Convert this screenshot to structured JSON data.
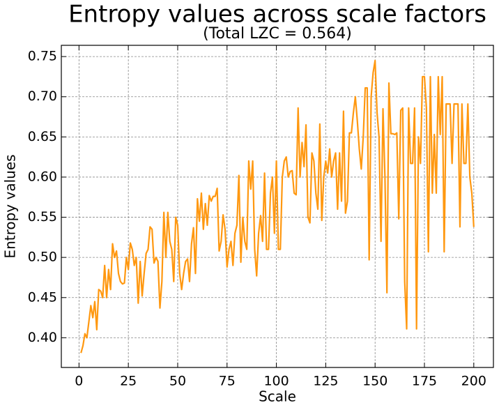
{
  "chart_data": {
    "type": "line",
    "title": "Entropy values across scale factors",
    "subtitle": "(Total LZC = 0.564)",
    "x_label": "Scale",
    "y_label": "Entropy values",
    "grid": true,
    "xlim": [
      -8.95,
      209.95
    ],
    "ylim": [
      0.363,
      0.764
    ],
    "xticks": [
      0,
      25,
      50,
      75,
      100,
      125,
      150,
      175,
      200
    ],
    "yticks": [
      {
        "value": 0.4,
        "label": "0.40"
      },
      0.45,
      {
        "value": 0.5,
        "label": "0.50"
      },
      0.55,
      {
        "value": 0.6,
        "label": "0.60"
      },
      0.65,
      {
        "value": 0.7,
        "label": "0.70"
      },
      0.75
    ],
    "x": [
      1,
      2,
      3,
      4,
      5,
      6,
      7,
      8,
      9,
      10,
      11,
      12,
      13,
      14,
      15,
      16,
      17,
      18,
      19,
      20,
      21,
      22,
      23,
      24,
      25,
      26,
      27,
      28,
      29,
      30,
      31,
      32,
      33,
      34,
      35,
      36,
      37,
      38,
      39,
      40,
      41,
      42,
      43,
      44,
      45,
      46,
      47,
      48,
      49,
      50,
      51,
      52,
      53,
      54,
      55,
      56,
      57,
      58,
      59,
      60,
      61,
      62,
      63,
      64,
      65,
      66,
      67,
      68,
      69,
      70,
      71,
      72,
      73,
      74,
      75,
      76,
      77,
      78,
      79,
      80,
      81,
      82,
      83,
      84,
      85,
      86,
      87,
      88,
      89,
      90,
      91,
      92,
      93,
      94,
      95,
      96,
      97,
      98,
      99,
      100,
      101,
      102,
      103,
      104,
      105,
      106,
      107,
      108,
      109,
      110,
      111,
      112,
      113,
      114,
      115,
      116,
      117,
      118,
      119,
      120,
      121,
      122,
      123,
      124,
      125,
      126,
      127,
      128,
      129,
      130,
      131,
      132,
      133,
      134,
      135,
      136,
      137,
      138,
      139,
      140,
      141,
      142,
      143,
      144,
      145,
      146,
      147,
      148,
      149,
      150,
      151,
      152,
      153,
      154,
      155,
      156,
      157,
      158,
      159,
      160,
      161,
      162,
      163,
      164,
      165,
      166,
      167,
      168,
      169,
      170,
      171,
      172,
      173,
      174,
      175,
      176,
      177,
      178,
      179,
      180,
      181,
      182,
      183,
      184,
      185,
      186,
      187,
      188,
      189,
      190,
      191,
      192,
      193,
      194,
      195,
      196,
      197,
      198,
      199,
      200
    ],
    "series": [
      {
        "name": "Entropy",
        "color": "#ff9810",
        "values": [
          0.381,
          0.39,
          0.405,
          0.4,
          0.42,
          0.44,
          0.425,
          0.445,
          0.41,
          0.46,
          0.458,
          0.45,
          0.49,
          0.45,
          0.485,
          0.46,
          0.517,
          0.5,
          0.508,
          0.48,
          0.47,
          0.467,
          0.468,
          0.5,
          0.485,
          0.518,
          0.51,
          0.49,
          0.5,
          0.443,
          0.495,
          0.452,
          0.48,
          0.505,
          0.51,
          0.538,
          0.535,
          0.493,
          0.5,
          0.495,
          0.437,
          0.47,
          0.556,
          0.5,
          0.556,
          0.52,
          0.51,
          0.47,
          0.55,
          0.54,
          0.48,
          0.46,
          0.48,
          0.495,
          0.498,
          0.47,
          0.517,
          0.537,
          0.48,
          0.573,
          0.545,
          0.58,
          0.535,
          0.567,
          0.54,
          0.577,
          0.57,
          0.576,
          0.576,
          0.586,
          0.508,
          0.52,
          0.553,
          0.535,
          0.488,
          0.51,
          0.52,
          0.49,
          0.53,
          0.54,
          0.602,
          0.494,
          0.55,
          0.52,
          0.51,
          0.62,
          0.585,
          0.62,
          0.51,
          0.477,
          0.53,
          0.552,
          0.52,
          0.605,
          0.51,
          0.51,
          0.58,
          0.6,
          0.53,
          0.62,
          0.51,
          0.51,
          0.6,
          0.62,
          0.625,
          0.6,
          0.607,
          0.608,
          0.58,
          0.578,
          0.686,
          0.6,
          0.643,
          0.613,
          0.665,
          0.55,
          0.543,
          0.63,
          0.62,
          0.58,
          0.56,
          0.666,
          0.546,
          0.6,
          0.62,
          0.605,
          0.635,
          0.6,
          0.62,
          0.63,
          0.56,
          0.63,
          0.57,
          0.682,
          0.555,
          0.57,
          0.655,
          0.655,
          0.68,
          0.7,
          0.67,
          0.635,
          0.61,
          0.65,
          0.711,
          0.711,
          0.497,
          0.7,
          0.73,
          0.745,
          0.68,
          0.65,
          0.52,
          0.685,
          0.6,
          0.456,
          0.717,
          0.654,
          0.654,
          0.653,
          0.655,
          0.548,
          0.683,
          0.686,
          0.47,
          0.411,
          0.686,
          0.617,
          0.617,
          0.686,
          0.411,
          0.65,
          0.617,
          0.725,
          0.725,
          0.686,
          0.507,
          0.725,
          0.58,
          0.653,
          0.58,
          0.725,
          0.653,
          0.725,
          0.507,
          0.691,
          0.691,
          0.691,
          0.617,
          0.691,
          0.691,
          0.691,
          0.538,
          0.691,
          0.617,
          0.617,
          0.691,
          0.6,
          0.58,
          0.538
        ]
      }
    ]
  }
}
